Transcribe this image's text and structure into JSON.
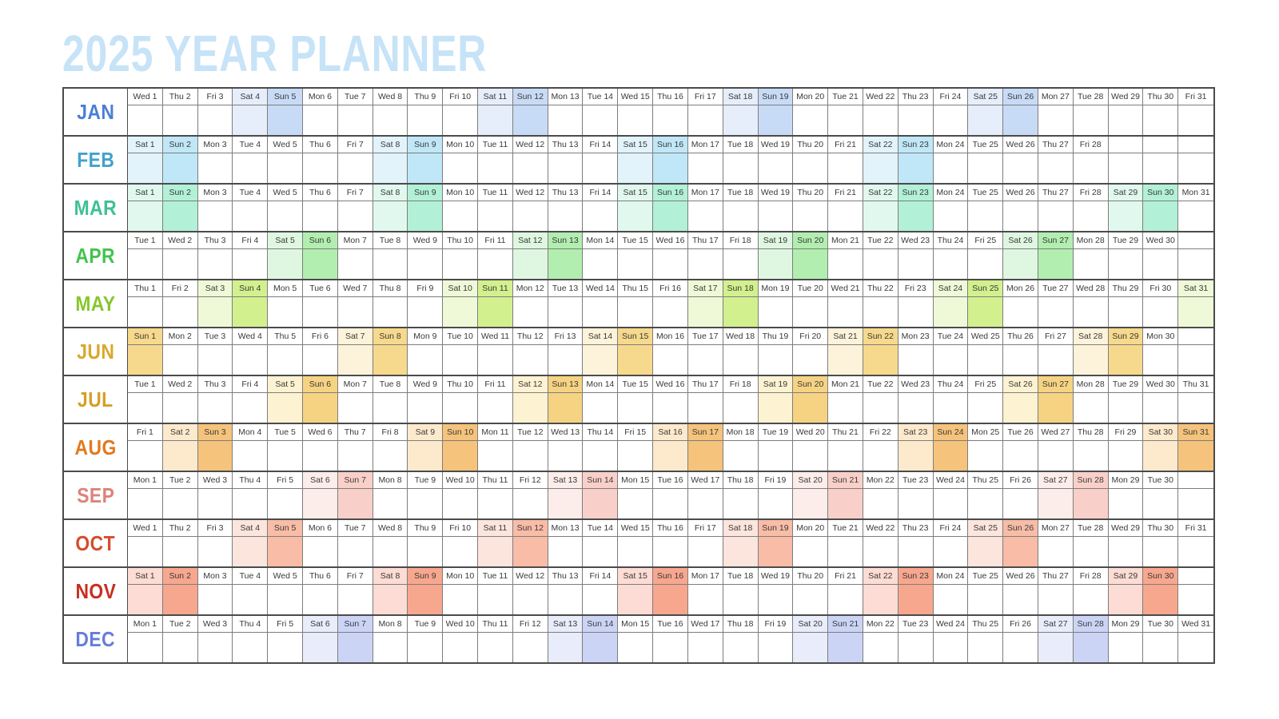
{
  "page": {
    "background": "#ffffff"
  },
  "title": {
    "text": "2025 YEAR PLANNER",
    "color": "#c7e3f7"
  },
  "table": {
    "columns_per_month": 31,
    "border_strong": "#4b4b4b",
    "border_light": "#7d7d7d",
    "header_text_color": "#3a3a3a",
    "cell_background": "#ffffff"
  },
  "months": [
    {
      "name": "JAN",
      "label_color": "#4a7ed6",
      "sat_color": "#e6eefb",
      "sun_color": "#c8dbf6",
      "days": [
        "Wed 1",
        "Thu 2",
        "Fri 3",
        "Sat 4",
        "Sun 5",
        "Mon 6",
        "Tue 7",
        "Wed 8",
        "Thu 9",
        "Fri 10",
        "Sat 11",
        "Sun 12",
        "Mon 13",
        "Tue 14",
        "Wed 15",
        "Thu 16",
        "Fri 17",
        "Sat 18",
        "Sun 19",
        "Mon 20",
        "Tue 21",
        "Wed 22",
        "Thu 23",
        "Fri 24",
        "Sat 25",
        "Sun 26",
        "Mon 27",
        "Tue 28",
        "Wed 29",
        "Thu 30",
        "Fri 31"
      ]
    },
    {
      "name": "FEB",
      "label_color": "#41a3c9",
      "sat_color": "#e2f3fb",
      "sun_color": "#c0e7f7",
      "days": [
        "Sat 1",
        "Sun 2",
        "Mon 3",
        "Tue 4",
        "Wed 5",
        "Thu 6",
        "Fri 7",
        "Sat 8",
        "Sun 9",
        "Mon 10",
        "Tue 11",
        "Wed 12",
        "Thu 13",
        "Fri 14",
        "Sat 15",
        "Sun 16",
        "Mon 17",
        "Tue 18",
        "Wed 19",
        "Thu 20",
        "Fri 21",
        "Sat 22",
        "Sun 23",
        "Mon 24",
        "Tue 25",
        "Wed 26",
        "Thu 27",
        "Fri 28",
        "",
        "",
        ""
      ]
    },
    {
      "name": "MAR",
      "label_color": "#3ec096",
      "sat_color": "#e1f8ee",
      "sun_color": "#b2f0d7",
      "days": [
        "Sat 1",
        "Sun 2",
        "Mon 3",
        "Tue 4",
        "Wed 5",
        "Thu 6",
        "Fri 7",
        "Sat 8",
        "Sun 9",
        "Mon 10",
        "Tue 11",
        "Wed 12",
        "Thu 13",
        "Fri 14",
        "Sat 15",
        "Sun 16",
        "Mon 17",
        "Tue 18",
        "Wed 19",
        "Thu 20",
        "Fri 21",
        "Sat 22",
        "Sun 23",
        "Mon 24",
        "Tue 25",
        "Wed 26",
        "Thu 27",
        "Fri 28",
        "Sat 29",
        "Sun 30",
        "Mon 31"
      ]
    },
    {
      "name": "APR",
      "label_color": "#43c34d",
      "sat_color": "#dff7e1",
      "sun_color": "#b2eeb0",
      "days": [
        "Tue 1",
        "Wed 2",
        "Thu 3",
        "Fri 4",
        "Sat 5",
        "Sun 6",
        "Mon 7",
        "Tue 8",
        "Wed 9",
        "Thu 10",
        "Fri 11",
        "Sat 12",
        "Sun 13",
        "Mon 14",
        "Tue 15",
        "Wed 16",
        "Thu 17",
        "Fri 18",
        "Sat 19",
        "Sun 20",
        "Mon 21",
        "Tue 22",
        "Wed 23",
        "Thu 24",
        "Fri 25",
        "Sat 26",
        "Sun 27",
        "Mon 28",
        "Tue 29",
        "Wed 30",
        ""
      ]
    },
    {
      "name": "MAY",
      "label_color": "#86c72d",
      "sat_color": "#eff9d7",
      "sun_color": "#d3f08f",
      "days": [
        "Thu 1",
        "Fri 2",
        "Sat 3",
        "Sun 4",
        "Mon 5",
        "Tue 6",
        "Wed 7",
        "Thu 8",
        "Fri 9",
        "Sat 10",
        "Sun 11",
        "Mon 12",
        "Tue 13",
        "Wed 14",
        "Thu 15",
        "Fri 16",
        "Sat 17",
        "Sun 18",
        "Mon 19",
        "Tue 20",
        "Wed 21",
        "Thu 22",
        "Fri 23",
        "Sat 24",
        "Sun 25",
        "Mon 26",
        "Tue 27",
        "Wed 28",
        "Thu 29",
        "Fri 30",
        "Sat 31"
      ]
    },
    {
      "name": "JUN",
      "label_color": "#d9a82b",
      "sat_color": "#fdf3da",
      "sun_color": "#f6d98c",
      "days": [
        "Sun 1",
        "Mon 2",
        "Tue 3",
        "Wed 4",
        "Thu 5",
        "Fri 6",
        "Sat 7",
        "Sun 8",
        "Mon 9",
        "Tue 10",
        "Wed 11",
        "Thu 12",
        "Fri 13",
        "Sat 14",
        "Sun 15",
        "Mon 16",
        "Tue 17",
        "Wed 18",
        "Thu 19",
        "Fri 20",
        "Sat 21",
        "Sun 22",
        "Mon 23",
        "Tue 24",
        "Wed 25",
        "Thu 26",
        "Fri 27",
        "Sat 28",
        "Sun 29",
        "Mon 30",
        ""
      ]
    },
    {
      "name": "JUL",
      "label_color": "#d2a026",
      "sat_color": "#fdf2d1",
      "sun_color": "#f6d383",
      "days": [
        "Tue 1",
        "Wed 2",
        "Thu 3",
        "Fri 4",
        "Sat 5",
        "Sun 6",
        "Mon 7",
        "Tue 8",
        "Wed 9",
        "Thu 10",
        "Fri 11",
        "Sat 12",
        "Sun 13",
        "Mon 14",
        "Tue 15",
        "Wed 16",
        "Thu 17",
        "Fri 18",
        "Sat 19",
        "Sun 20",
        "Mon 21",
        "Tue 22",
        "Wed 23",
        "Thu 24",
        "Fri 25",
        "Sat 26",
        "Sun 27",
        "Mon 28",
        "Tue 29",
        "Wed 30",
        "Thu 31"
      ]
    },
    {
      "name": "AUG",
      "label_color": "#e2791f",
      "sat_color": "#fdeacd",
      "sun_color": "#f5c37c",
      "days": [
        "Fri 1",
        "Sat 2",
        "Sun 3",
        "Mon 4",
        "Tue 5",
        "Wed 6",
        "Thu 7",
        "Fri 8",
        "Sat 9",
        "Sun 10",
        "Mon 11",
        "Tue 12",
        "Wed 13",
        "Thu 14",
        "Fri 15",
        "Sat 16",
        "Sun 17",
        "Mon 18",
        "Tue 19",
        "Wed 20",
        "Thu 21",
        "Fri 22",
        "Sat 23",
        "Sun 24",
        "Mon 25",
        "Tue 26",
        "Wed 27",
        "Thu 28",
        "Fri 29",
        "Sat 30",
        "Sun 31"
      ]
    },
    {
      "name": "SEP",
      "label_color": "#dc837b",
      "sat_color": "#fdedea",
      "sun_color": "#f9d0c9",
      "days": [
        "Mon 1",
        "Tue 2",
        "Wed 3",
        "Thu 4",
        "Fri 5",
        "Sat 6",
        "Sun 7",
        "Mon 8",
        "Tue 9",
        "Wed 10",
        "Thu 11",
        "Fri 12",
        "Sat 13",
        "Sun 14",
        "Mon 15",
        "Tue 16",
        "Wed 17",
        "Thu 18",
        "Fri 19",
        "Sat 20",
        "Sun 21",
        "Mon 22",
        "Tue 23",
        "Wed 24",
        "Thu 25",
        "Fri 26",
        "Sat 27",
        "Sun 28",
        "Mon 29",
        "Tue 30",
        ""
      ]
    },
    {
      "name": "OCT",
      "label_color": "#d54d2e",
      "sat_color": "#fce5dd",
      "sun_color": "#f8bca7",
      "days": [
        "Wed 1",
        "Thu 2",
        "Fri 3",
        "Sat 4",
        "Sun 5",
        "Mon 6",
        "Tue 7",
        "Wed 8",
        "Thu 9",
        "Fri 10",
        "Sat 11",
        "Sun 12",
        "Mon 13",
        "Tue 14",
        "Wed 15",
        "Thu 16",
        "Fri 17",
        "Sat 18",
        "Sun 19",
        "Mon 20",
        "Tue 21",
        "Wed 22",
        "Thu 23",
        "Fri 24",
        "Sat 25",
        "Sun 26",
        "Mon 27",
        "Tue 28",
        "Wed 29",
        "Thu 30",
        "Fri 31"
      ]
    },
    {
      "name": "NOV",
      "label_color": "#c82e1f",
      "sat_color": "#fcdcd4",
      "sun_color": "#f8a78f",
      "days": [
        "Sat 1",
        "Sun 2",
        "Mon 3",
        "Tue 4",
        "Wed 5",
        "Thu 6",
        "Fri 7",
        "Sat 8",
        "Sun 9",
        "Mon 10",
        "Tue 11",
        "Wed 12",
        "Thu 13",
        "Fri 14",
        "Sat 15",
        "Sun 16",
        "Mon 17",
        "Tue 18",
        "Wed 19",
        "Thu 20",
        "Fri 21",
        "Sat 22",
        "Sun 23",
        "Mon 24",
        "Tue 25",
        "Wed 26",
        "Thu 27",
        "Fri 28",
        "Sat 29",
        "Sun 30",
        ""
      ]
    },
    {
      "name": "DEC",
      "label_color": "#667dd8",
      "sat_color": "#e9ecfa",
      "sun_color": "#ccd4f6",
      "days": [
        "Mon 1",
        "Tue 2",
        "Wed 3",
        "Thu 4",
        "Fri 5",
        "Sat 6",
        "Sun 7",
        "Mon 8",
        "Tue 9",
        "Wed 10",
        "Thu 11",
        "Fri 12",
        "Sat 13",
        "Sun 14",
        "Mon 15",
        "Tue 16",
        "Wed 17",
        "Thu 18",
        "Fri 19",
        "Sat 20",
        "Sun 21",
        "Mon 22",
        "Tue 23",
        "Wed 24",
        "Thu 25",
        "Fri 26",
        "Sat 27",
        "Sun 28",
        "Mon 29",
        "Tue 30",
        "Wed 31"
      ]
    }
  ]
}
